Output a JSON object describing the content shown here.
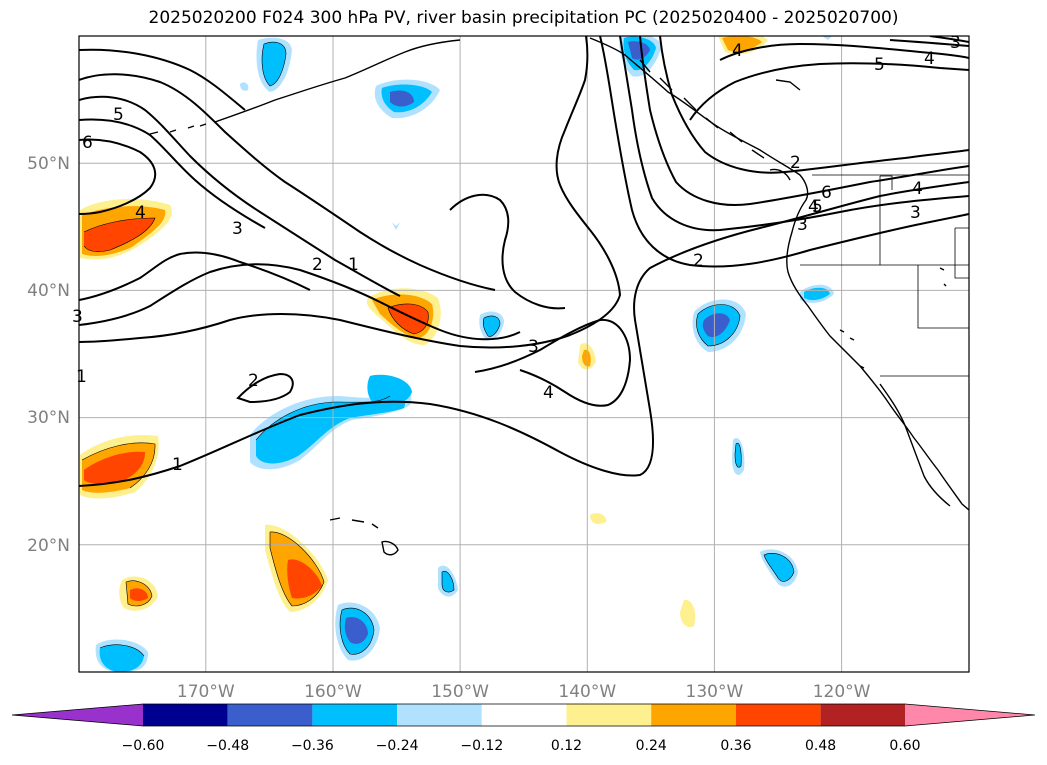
{
  "title": "2025020200 F024 300 hPa PV, river basin precipitation PC (2025020400 - 2025020700)",
  "map": {
    "lon_range": [
      -180,
      -110
    ],
    "lat_range": [
      10,
      60
    ],
    "lat_labels": [
      "50°N",
      "40°N",
      "30°N",
      "20°N"
    ],
    "lon_labels": [
      "170°W",
      "160°W",
      "150°W",
      "140°W",
      "130°W",
      "120°W"
    ],
    "grid": true,
    "pv_contour_labels": [
      "1",
      "2",
      "3",
      "4",
      "5",
      "6",
      "1",
      "2",
      "3",
      "4",
      "2",
      "3",
      "4",
      "5",
      "6",
      "5",
      "4",
      "3",
      "2",
      "3",
      "4",
      "4",
      "3",
      "1"
    ]
  },
  "colorbar": {
    "ticks": [
      "−0.60",
      "−0.48",
      "−0.36",
      "−0.24",
      "−0.12",
      "0.12",
      "0.24",
      "0.36",
      "0.48",
      "0.60"
    ],
    "colors": {
      "under": "#9932cc",
      "neg_060_048": "#000090",
      "neg_048_036": "#3a5fcd",
      "neg_036_024": "#00bfff",
      "neg_024_012": "#b0e2ff",
      "neutral": "#ffffff",
      "pos_012_024": "#fff08f",
      "pos_024_036": "#ffa500",
      "pos_036_048": "#ff4500",
      "pos_048_060": "#b22222",
      "over": "#ff88aa"
    }
  }
}
